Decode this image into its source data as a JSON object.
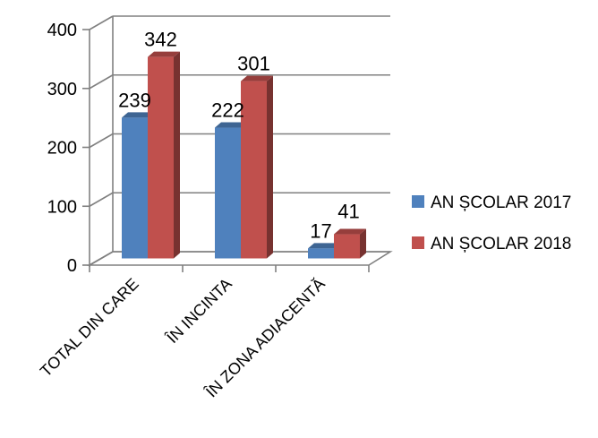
{
  "chart_data": {
    "type": "bar",
    "categories": [
      "TOTAL DIN CARE",
      "ÎN INCINTA",
      "ÎN ZONA ADIACENTĂ"
    ],
    "series": [
      {
        "name": "AN ȘCOLAR 2017",
        "values": [
          239,
          222,
          17
        ],
        "color": "#4f81bd"
      },
      {
        "name": "AN ȘCOLAR 2018",
        "values": [
          342,
          301,
          41
        ],
        "color": "#c0504d"
      }
    ],
    "ylim": [
      0,
      400
    ],
    "yticks": [
      0,
      100,
      200,
      300,
      400
    ],
    "grid": true,
    "legend": "right",
    "title": "",
    "xlabel": "",
    "ylabel": ""
  }
}
